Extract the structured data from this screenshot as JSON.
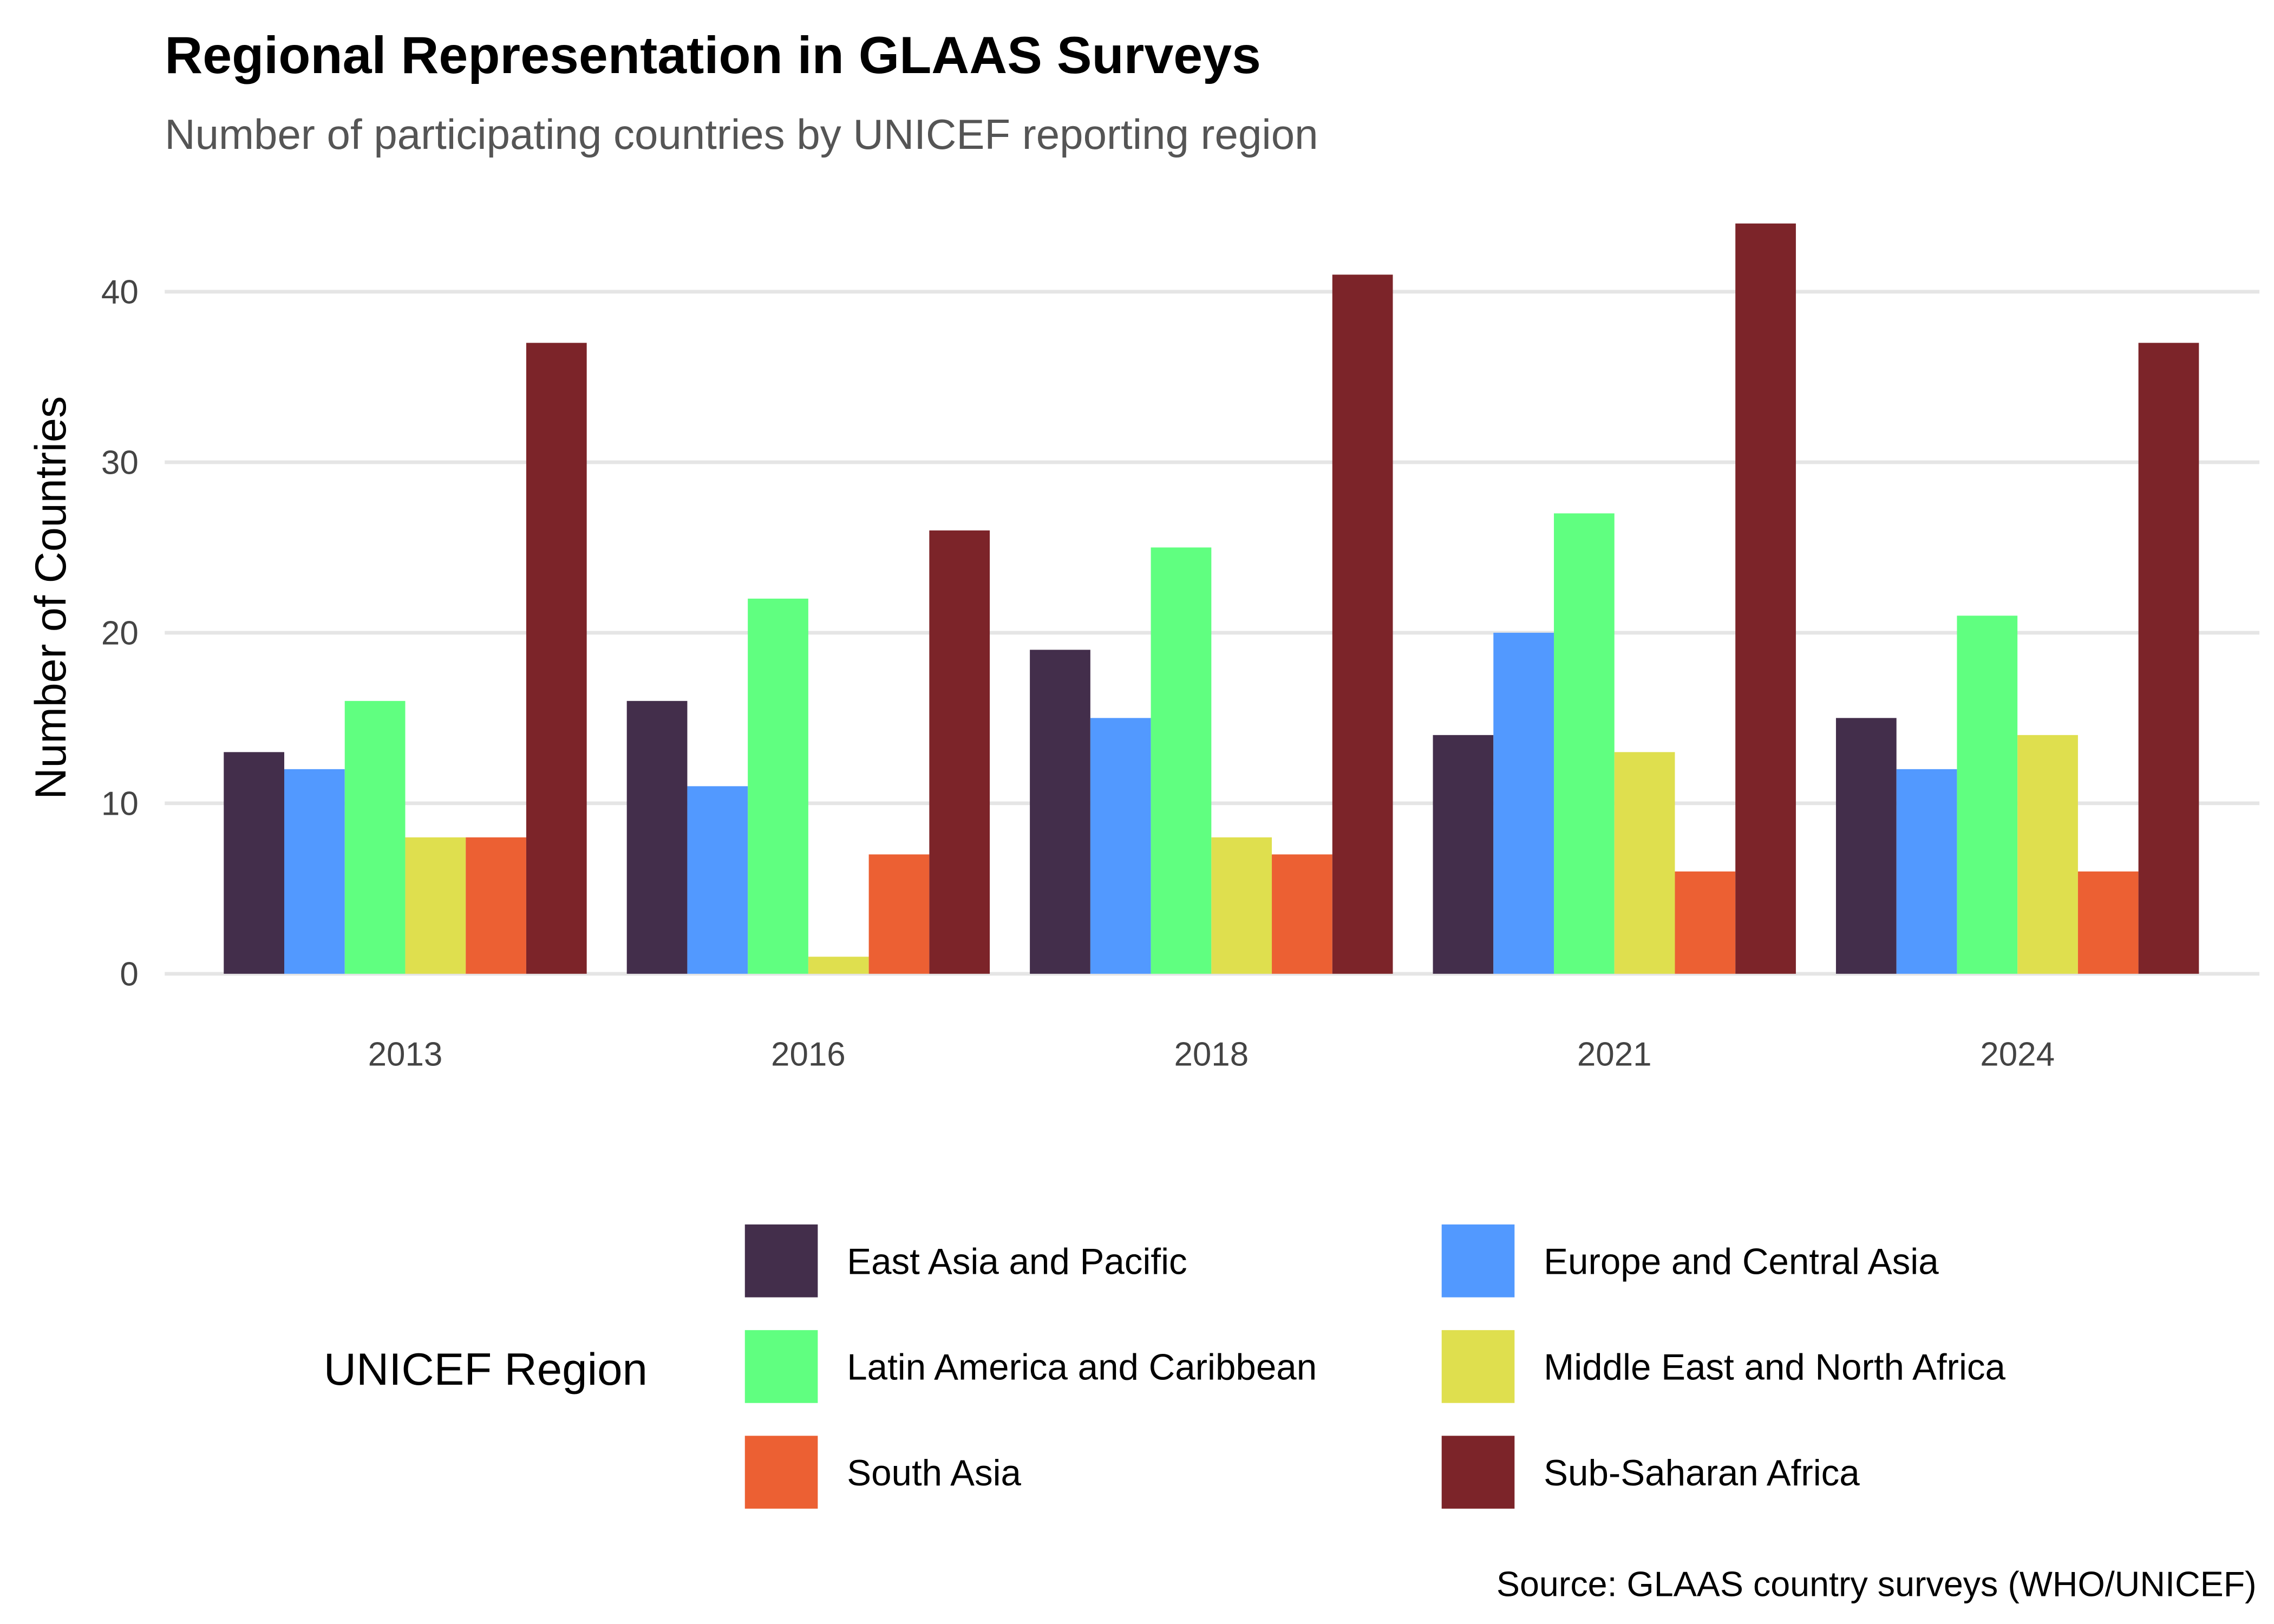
{
  "chart_data": {
    "type": "bar",
    "title": "Regional Representation in GLAAS Surveys",
    "subtitle": "Number of participating countries by UNICEF reporting region",
    "xlabel": "",
    "ylabel": "Number of Countries",
    "caption": "Source: GLAAS country surveys (WHO/UNICEF)",
    "categories": [
      "2013",
      "2016",
      "2018",
      "2021",
      "2024"
    ],
    "ylim": [
      0,
      45
    ],
    "yticks": [
      0,
      10,
      20,
      30,
      40
    ],
    "grid": true,
    "legend": {
      "title": "UNICEF Region",
      "placement": "bottom"
    },
    "series": [
      {
        "name": "East Asia and Pacific",
        "color": "#432E4B",
        "values": [
          13,
          16,
          19,
          14,
          15
        ]
      },
      {
        "name": "Europe and Central Asia",
        "color": "#5299FF",
        "values": [
          12,
          11,
          15,
          20,
          12
        ]
      },
      {
        "name": "Latin America and Caribbean",
        "color": "#60FF80",
        "values": [
          16,
          22,
          25,
          27,
          21
        ]
      },
      {
        "name": "Middle East and North Africa",
        "color": "#DFDF4E",
        "values": [
          8,
          1,
          8,
          13,
          14
        ]
      },
      {
        "name": "South Asia",
        "color": "#EC6033",
        "values": [
          8,
          7,
          7,
          6,
          6
        ]
      },
      {
        "name": "Sub-Saharan Africa",
        "color": "#7C2429",
        "values": [
          37,
          26,
          41,
          44,
          37
        ]
      }
    ]
  }
}
